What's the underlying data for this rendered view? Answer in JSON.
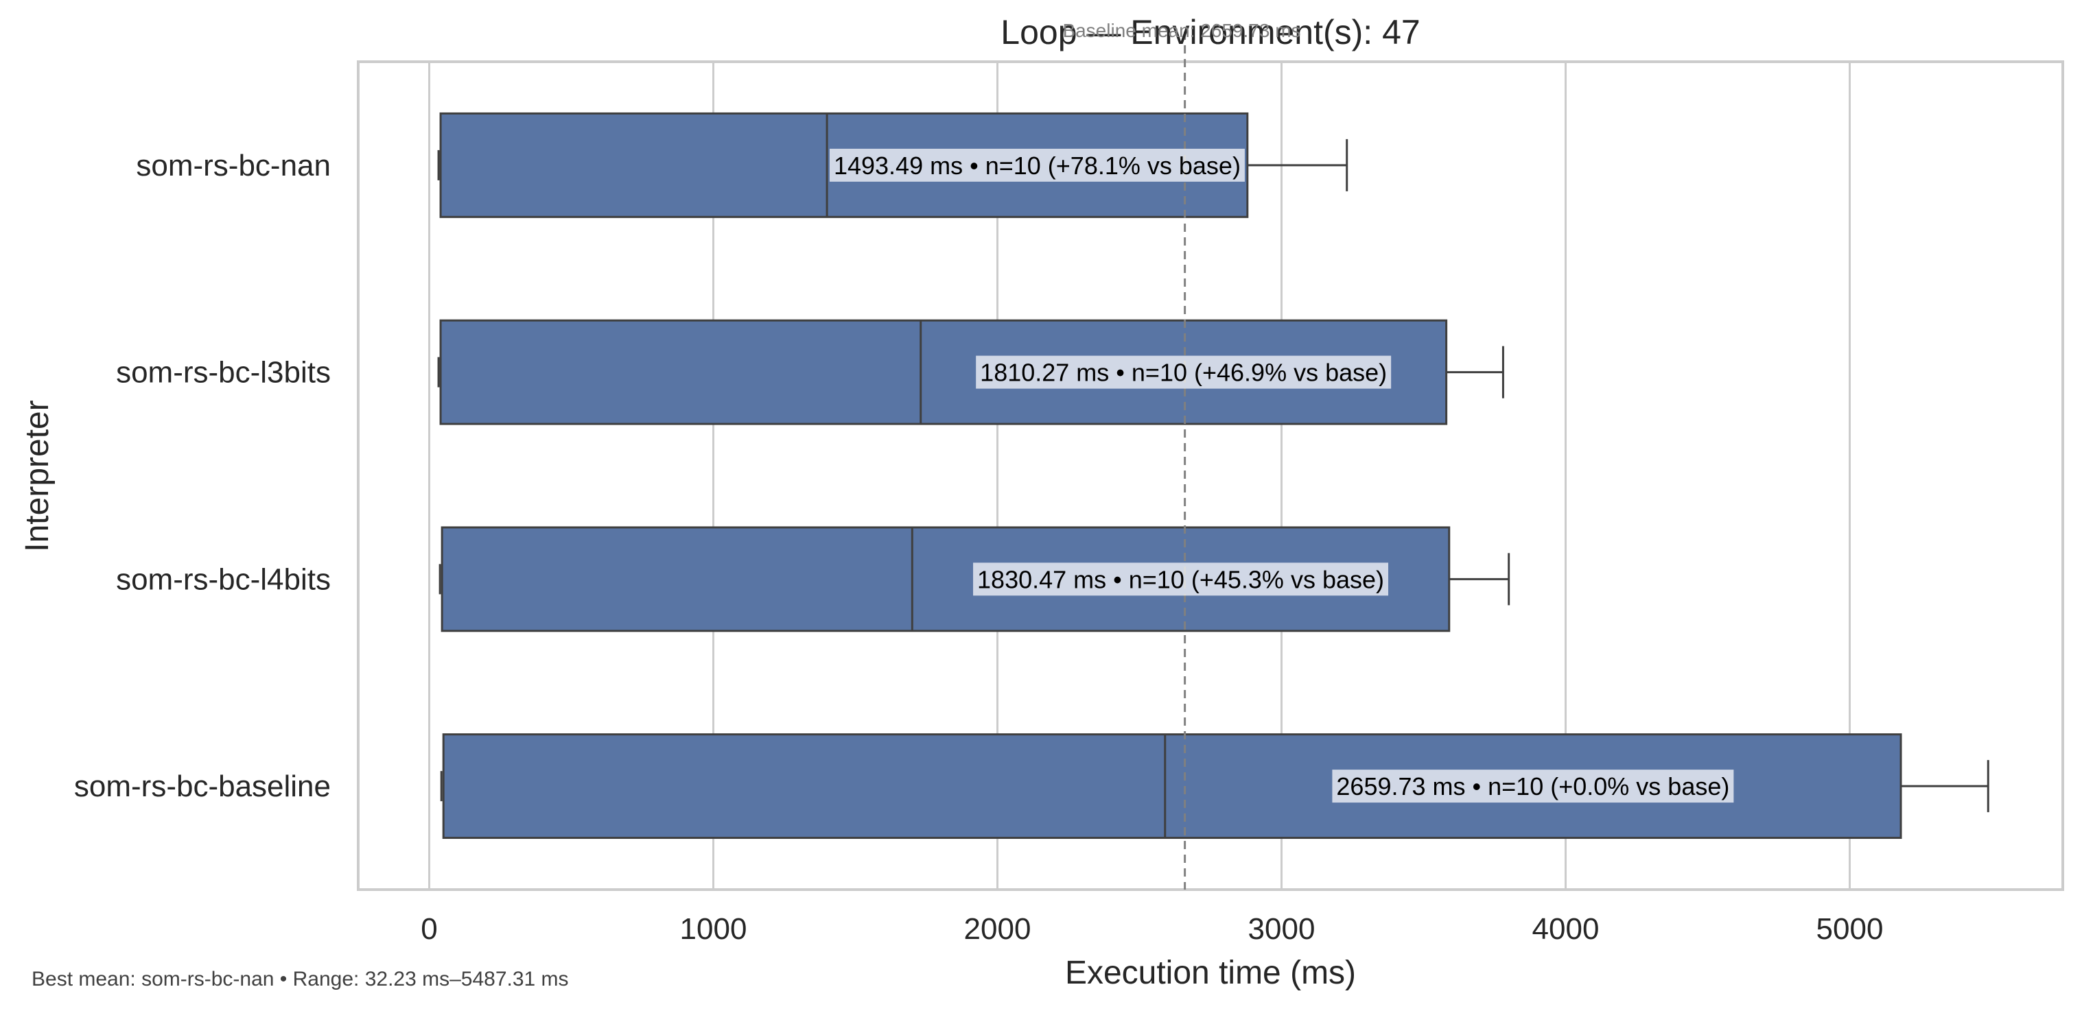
{
  "chart_data": {
    "type": "bar",
    "orientation": "horizontal",
    "title": "Loop — Environment(s): 47",
    "xlabel": "Execution time (ms)",
    "ylabel": "Interpreter",
    "xlim": [
      -250,
      5750
    ],
    "xticks": [
      0,
      1000,
      2000,
      3000,
      4000,
      5000
    ],
    "grid": true,
    "bar_color": "#5975a4",
    "categories": [
      "som-rs-bc-nan",
      "som-rs-bc-l3bits",
      "som-rs-bc-l4bits",
      "som-rs-bc-baseline"
    ],
    "bars": [
      {
        "name": "som-rs-bc-nan",
        "start": 40,
        "median": 1400,
        "end": 2880,
        "whisker": 3230,
        "label": "1493.49 ms • n=10 (+78.1% vs base)"
      },
      {
        "name": "som-rs-bc-l3bits",
        "start": 40,
        "median": 1730,
        "end": 3580,
        "whisker": 3780,
        "label": "1810.27 ms • n=10 (+46.9% vs base)"
      },
      {
        "name": "som-rs-bc-l4bits",
        "start": 45,
        "median": 1700,
        "end": 3590,
        "whisker": 3800,
        "label": "1830.47 ms • n=10 (+45.3% vs base)"
      },
      {
        "name": "som-rs-bc-baseline",
        "start": 50,
        "median": 2590,
        "end": 5180,
        "whisker": 5487.31,
        "label": "2659.73 ms • n=10 (+0.0% vs base)"
      }
    ],
    "baseline": {
      "value": 2659.73,
      "label": "Baseline mean: 2659.73 ms"
    },
    "footer": "Best mean: som-rs-bc-nan • Range: 32.23 ms–5487.31 ms"
  }
}
